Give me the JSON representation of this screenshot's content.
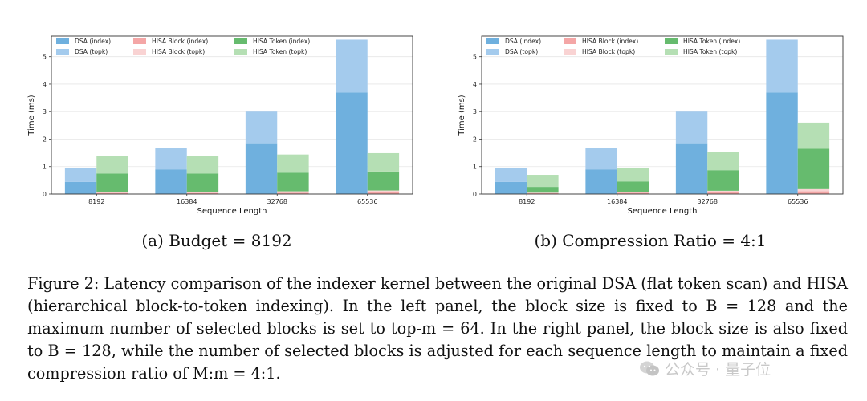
{
  "colors": {
    "dsa_index": "#6fb0de",
    "dsa_topk": "#a4cbed",
    "hisa_block_index": "#f4a6a6",
    "hisa_block_topk": "#f9d3d3",
    "hisa_token_index": "#66bb6e",
    "hisa_token_topk": "#b5dfb4"
  },
  "chart_data": [
    {
      "type": "bar",
      "subcaption": "(a) Budget = 8192",
      "categories": [
        "8192",
        "16384",
        "32768",
        "65536"
      ],
      "xlabel": "Sequence Length",
      "ylabel": "Time (ms)",
      "ylim": [
        0,
        5.75
      ],
      "yticks": [
        "0",
        "1",
        "2",
        "3",
        "4",
        "5"
      ],
      "grid": true,
      "legend_position": "top-left",
      "legend": [
        "DSA (index)",
        "HISA Block (index)",
        "HISA Token (index)",
        "DSA (topk)",
        "HISA Block (topk)",
        "HISA Token (topk)"
      ],
      "series": [
        {
          "group": "DSA",
          "name": "DSA (index)",
          "values": [
            0.44,
            0.9,
            1.85,
            3.7
          ]
        },
        {
          "group": "DSA",
          "name": "DSA (topk)",
          "values": [
            0.5,
            0.78,
            1.15,
            1.92
          ]
        },
        {
          "group": "HISA",
          "name": "HISA Block (index)",
          "values": [
            0.04,
            0.04,
            0.05,
            0.07
          ]
        },
        {
          "group": "HISA",
          "name": "HISA Block (topk)",
          "values": [
            0.04,
            0.04,
            0.05,
            0.06
          ]
        },
        {
          "group": "HISA",
          "name": "HISA Token (index)",
          "values": [
            0.67,
            0.67,
            0.68,
            0.69
          ]
        },
        {
          "group": "HISA",
          "name": "HISA Token (topk)",
          "values": [
            0.65,
            0.65,
            0.66,
            0.67
          ]
        }
      ]
    },
    {
      "type": "bar",
      "subcaption": "(b) Compression Ratio = 4:1",
      "categories": [
        "8192",
        "16384",
        "32768",
        "65536"
      ],
      "xlabel": "Sequence Length",
      "ylabel": "Time (ms)",
      "ylim": [
        0,
        5.75
      ],
      "yticks": [
        "0",
        "1",
        "2",
        "3",
        "4",
        "5"
      ],
      "grid": true,
      "legend_position": "top-left",
      "legend": [
        "DSA (index)",
        "HISA Block (index)",
        "HISA Token (index)",
        "DSA (topk)",
        "HISA Block (topk)",
        "HISA Token (topk)"
      ],
      "series": [
        {
          "group": "DSA",
          "name": "DSA (index)",
          "values": [
            0.44,
            0.9,
            1.85,
            3.7
          ]
        },
        {
          "group": "DSA",
          "name": "DSA (topk)",
          "values": [
            0.5,
            0.78,
            1.15,
            1.92
          ]
        },
        {
          "group": "HISA",
          "name": "HISA Block (index)",
          "values": [
            0.03,
            0.05,
            0.07,
            0.1
          ]
        },
        {
          "group": "HISA",
          "name": "HISA Block (topk)",
          "values": [
            0.02,
            0.03,
            0.05,
            0.08
          ]
        },
        {
          "group": "HISA",
          "name": "HISA Token (index)",
          "values": [
            0.21,
            0.38,
            0.75,
            1.47
          ]
        },
        {
          "group": "HISA",
          "name": "HISA Token (topk)",
          "values": [
            0.44,
            0.49,
            0.65,
            0.95
          ]
        }
      ]
    }
  ],
  "caption": {
    "label": "Figure 2:",
    "text": "Latency comparison of the indexer kernel between the original DSA (flat token scan) and HISA (hierarchical block-to-token indexing). In the left panel, the block size is fixed to B = 128 and the maximum number of selected blocks is set to top-m = 64. In the right panel, the block size is also fixed to B = 128, while the number of selected blocks is adjusted for each sequence length to maintain a fixed compression ratio of M:m = 4:1."
  },
  "watermark": {
    "text": "公众号 · 量子位",
    "icon": "wechat-logo-icon"
  }
}
